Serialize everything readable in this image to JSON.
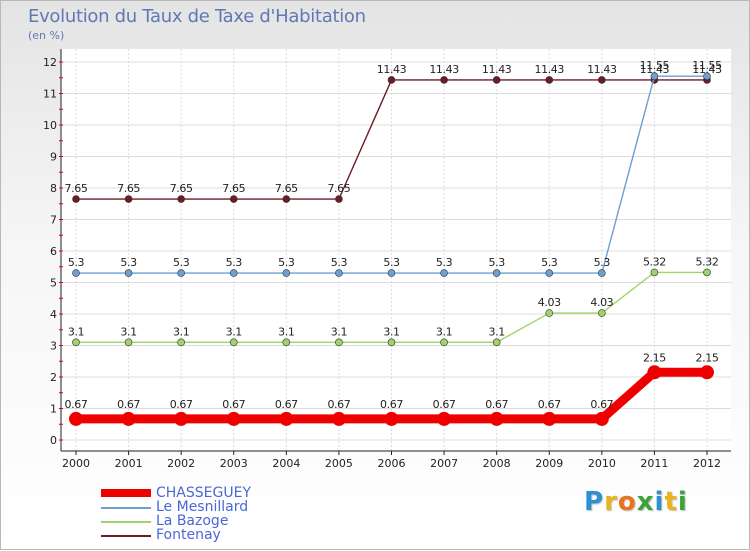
{
  "header": {
    "title": "Evolution du Taux de Taxe d'Habitation",
    "subtitle": "(en %)"
  },
  "logo": {
    "letters": [
      "P",
      "r",
      "o",
      "x",
      "i",
      "t",
      "i"
    ],
    "colors": [
      "#2f8fd3",
      "#e8b31e",
      "#e8731e",
      "#3aa33a",
      "#2f8fd3",
      "#e8b31e",
      "#3aa33a"
    ]
  },
  "chart_data": {
    "type": "line",
    "title": "Evolution du Taux de Taxe d'Habitation",
    "ylabel": "(en %)",
    "xlabel": "",
    "ylim": [
      0,
      12
    ],
    "yticks": [
      0,
      1,
      2,
      3,
      4,
      5,
      6,
      7,
      8,
      9,
      10,
      11,
      12
    ],
    "grid": true,
    "legend_position": "bottom-left",
    "categories": [
      "2000",
      "2001",
      "2002",
      "2003",
      "2004",
      "2005",
      "2006",
      "2007",
      "2008",
      "2009",
      "2010",
      "2011",
      "2012"
    ],
    "series": [
      {
        "name": "CHASSEGUEY",
        "color": "#ee0000",
        "values": [
          0.67,
          0.67,
          0.67,
          0.67,
          0.67,
          0.67,
          0.67,
          0.67,
          0.67,
          0.67,
          0.67,
          2.15,
          2.15
        ],
        "labels": [
          "0.67",
          "0.67",
          "0.67",
          "0.67",
          "0.67",
          "0.67",
          "0.67",
          "0.67",
          "0.67",
          "0.67",
          "0.67",
          "2.15",
          "2.15"
        ]
      },
      {
        "name": "Le Mesnillard",
        "color": "#6f9fd0",
        "values": [
          5.3,
          5.3,
          5.3,
          5.3,
          5.3,
          5.3,
          5.3,
          5.3,
          5.3,
          5.3,
          5.3,
          11.55,
          11.55
        ],
        "labels": [
          "5.3",
          "5.3",
          "5.3",
          "5.3",
          "5.3",
          "5.3",
          "5.3",
          "5.3",
          "5.3",
          "5.3",
          "5.3",
          "11.55",
          "11.55"
        ]
      },
      {
        "name": "La Bazoge",
        "color": "#9fd46a",
        "values": [
          3.1,
          3.1,
          3.1,
          3.1,
          3.1,
          3.1,
          3.1,
          3.1,
          3.1,
          4.03,
          4.03,
          5.32,
          5.32
        ],
        "labels": [
          "3.1",
          "3.1",
          "3.1",
          "3.1",
          "3.1",
          "3.1",
          "3.1",
          "3.1",
          "3.1",
          "4.03",
          "4.03",
          "5.32",
          "5.32"
        ]
      },
      {
        "name": "Fontenay",
        "color": "#6b1c24",
        "values": [
          7.65,
          7.65,
          7.65,
          7.65,
          7.65,
          7.65,
          11.43,
          11.43,
          11.43,
          11.43,
          11.43,
          11.43,
          11.43
        ],
        "labels": [
          "7.65",
          "7.65",
          "7.65",
          "7.65",
          "7.65",
          "7.65",
          "11.43",
          "11.43",
          "11.43",
          "11.43",
          "11.43",
          "11.43",
          "11.43"
        ]
      }
    ]
  }
}
